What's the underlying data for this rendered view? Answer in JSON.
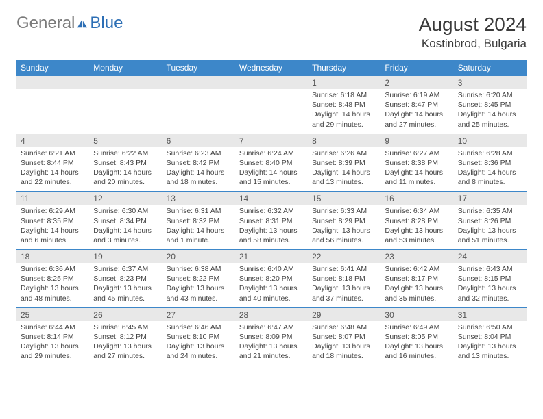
{
  "logo": {
    "general": "General",
    "blue": "Blue"
  },
  "title": "August 2024",
  "location": "Kostinbrod, Bulgaria",
  "styling": {
    "header_bg": "#3d87c9",
    "header_text": "#ffffff",
    "daynum_bg": "#e8e8e8",
    "border_color": "#3d87c9",
    "body_text": "#444444",
    "logo_gray": "#7a7a7a",
    "logo_blue": "#2d6fb5",
    "page_bg": "#ffffff",
    "title_fontsize": 28,
    "location_fontsize": 17,
    "dayheader_fontsize": 12,
    "cell_fontsize": 10.5
  },
  "day_headers": [
    "Sunday",
    "Monday",
    "Tuesday",
    "Wednesday",
    "Thursday",
    "Friday",
    "Saturday"
  ],
  "weeks": [
    [
      null,
      null,
      null,
      null,
      {
        "n": "1",
        "sr": "Sunrise: 6:18 AM",
        "ss": "Sunset: 8:48 PM",
        "dl": "Daylight: 14 hours and 29 minutes."
      },
      {
        "n": "2",
        "sr": "Sunrise: 6:19 AM",
        "ss": "Sunset: 8:47 PM",
        "dl": "Daylight: 14 hours and 27 minutes."
      },
      {
        "n": "3",
        "sr": "Sunrise: 6:20 AM",
        "ss": "Sunset: 8:45 PM",
        "dl": "Daylight: 14 hours and 25 minutes."
      }
    ],
    [
      {
        "n": "4",
        "sr": "Sunrise: 6:21 AM",
        "ss": "Sunset: 8:44 PM",
        "dl": "Daylight: 14 hours and 22 minutes."
      },
      {
        "n": "5",
        "sr": "Sunrise: 6:22 AM",
        "ss": "Sunset: 8:43 PM",
        "dl": "Daylight: 14 hours and 20 minutes."
      },
      {
        "n": "6",
        "sr": "Sunrise: 6:23 AM",
        "ss": "Sunset: 8:42 PM",
        "dl": "Daylight: 14 hours and 18 minutes."
      },
      {
        "n": "7",
        "sr": "Sunrise: 6:24 AM",
        "ss": "Sunset: 8:40 PM",
        "dl": "Daylight: 14 hours and 15 minutes."
      },
      {
        "n": "8",
        "sr": "Sunrise: 6:26 AM",
        "ss": "Sunset: 8:39 PM",
        "dl": "Daylight: 14 hours and 13 minutes."
      },
      {
        "n": "9",
        "sr": "Sunrise: 6:27 AM",
        "ss": "Sunset: 8:38 PM",
        "dl": "Daylight: 14 hours and 11 minutes."
      },
      {
        "n": "10",
        "sr": "Sunrise: 6:28 AM",
        "ss": "Sunset: 8:36 PM",
        "dl": "Daylight: 14 hours and 8 minutes."
      }
    ],
    [
      {
        "n": "11",
        "sr": "Sunrise: 6:29 AM",
        "ss": "Sunset: 8:35 PM",
        "dl": "Daylight: 14 hours and 6 minutes."
      },
      {
        "n": "12",
        "sr": "Sunrise: 6:30 AM",
        "ss": "Sunset: 8:34 PM",
        "dl": "Daylight: 14 hours and 3 minutes."
      },
      {
        "n": "13",
        "sr": "Sunrise: 6:31 AM",
        "ss": "Sunset: 8:32 PM",
        "dl": "Daylight: 14 hours and 1 minute."
      },
      {
        "n": "14",
        "sr": "Sunrise: 6:32 AM",
        "ss": "Sunset: 8:31 PM",
        "dl": "Daylight: 13 hours and 58 minutes."
      },
      {
        "n": "15",
        "sr": "Sunrise: 6:33 AM",
        "ss": "Sunset: 8:29 PM",
        "dl": "Daylight: 13 hours and 56 minutes."
      },
      {
        "n": "16",
        "sr": "Sunrise: 6:34 AM",
        "ss": "Sunset: 8:28 PM",
        "dl": "Daylight: 13 hours and 53 minutes."
      },
      {
        "n": "17",
        "sr": "Sunrise: 6:35 AM",
        "ss": "Sunset: 8:26 PM",
        "dl": "Daylight: 13 hours and 51 minutes."
      }
    ],
    [
      {
        "n": "18",
        "sr": "Sunrise: 6:36 AM",
        "ss": "Sunset: 8:25 PM",
        "dl": "Daylight: 13 hours and 48 minutes."
      },
      {
        "n": "19",
        "sr": "Sunrise: 6:37 AM",
        "ss": "Sunset: 8:23 PM",
        "dl": "Daylight: 13 hours and 45 minutes."
      },
      {
        "n": "20",
        "sr": "Sunrise: 6:38 AM",
        "ss": "Sunset: 8:22 PM",
        "dl": "Daylight: 13 hours and 43 minutes."
      },
      {
        "n": "21",
        "sr": "Sunrise: 6:40 AM",
        "ss": "Sunset: 8:20 PM",
        "dl": "Daylight: 13 hours and 40 minutes."
      },
      {
        "n": "22",
        "sr": "Sunrise: 6:41 AM",
        "ss": "Sunset: 8:18 PM",
        "dl": "Daylight: 13 hours and 37 minutes."
      },
      {
        "n": "23",
        "sr": "Sunrise: 6:42 AM",
        "ss": "Sunset: 8:17 PM",
        "dl": "Daylight: 13 hours and 35 minutes."
      },
      {
        "n": "24",
        "sr": "Sunrise: 6:43 AM",
        "ss": "Sunset: 8:15 PM",
        "dl": "Daylight: 13 hours and 32 minutes."
      }
    ],
    [
      {
        "n": "25",
        "sr": "Sunrise: 6:44 AM",
        "ss": "Sunset: 8:14 PM",
        "dl": "Daylight: 13 hours and 29 minutes."
      },
      {
        "n": "26",
        "sr": "Sunrise: 6:45 AM",
        "ss": "Sunset: 8:12 PM",
        "dl": "Daylight: 13 hours and 27 minutes."
      },
      {
        "n": "27",
        "sr": "Sunrise: 6:46 AM",
        "ss": "Sunset: 8:10 PM",
        "dl": "Daylight: 13 hours and 24 minutes."
      },
      {
        "n": "28",
        "sr": "Sunrise: 6:47 AM",
        "ss": "Sunset: 8:09 PM",
        "dl": "Daylight: 13 hours and 21 minutes."
      },
      {
        "n": "29",
        "sr": "Sunrise: 6:48 AM",
        "ss": "Sunset: 8:07 PM",
        "dl": "Daylight: 13 hours and 18 minutes."
      },
      {
        "n": "30",
        "sr": "Sunrise: 6:49 AM",
        "ss": "Sunset: 8:05 PM",
        "dl": "Daylight: 13 hours and 16 minutes."
      },
      {
        "n": "31",
        "sr": "Sunrise: 6:50 AM",
        "ss": "Sunset: 8:04 PM",
        "dl": "Daylight: 13 hours and 13 minutes."
      }
    ]
  ]
}
